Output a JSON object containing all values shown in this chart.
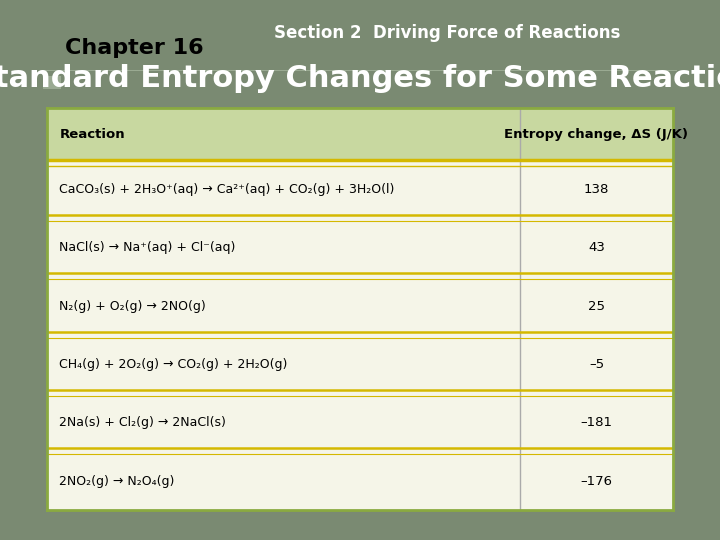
{
  "bg_color": "#7a8a72",
  "header_text1": "Chapter 16",
  "header_text2": "Section 2  Driving Force of Reactions",
  "title": "Standard Entropy Changes for Some Reactions",
  "title_color": "#ffffff",
  "title_fontsize": 22,
  "table_bg": "#f5f5e8",
  "table_header_bg": "#c8d8a0",
  "table_border_color": "#8aaa40",
  "col_header_1": "Reaction",
  "col_header_2": "Entropy change, ΔS (J/K)",
  "reactions": [
    "CaCO₃(s) + 2H₃O⁺(aq) → Ca²⁺(aq) + CO₂(g) + 3H₂O(l)",
    "NaCl(s) → Na⁺(aq) + Cl⁻(aq)",
    "N₂(g) + O₂(g) → 2NO(g)",
    "CH₄(g) + 2O₂(g) → CO₂(g) + 2H₂O(g)",
    "2Na(s) + Cl₂(g) → 2NaCl(s)",
    "2NO₂(g) → N₂O₄(g)"
  ],
  "entropy_values": [
    "138",
    "43",
    "25",
    "–5",
    "–181",
    "–176"
  ],
  "row_separator_color": "#d4b800",
  "col_separator_color": "#aaaaaa",
  "accent_color": "#9aaa92"
}
